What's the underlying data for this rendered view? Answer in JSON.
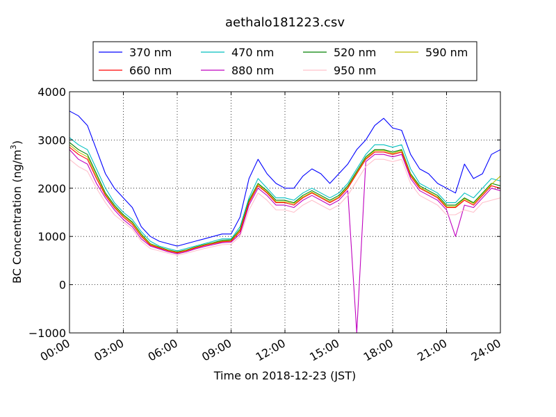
{
  "chart_data": {
    "type": "line",
    "title": "aethalo181223.csv",
    "xlabel": "Time on 2018-12-23 (JST)",
    "ylabel_main": "BC Concentration (ng/m",
    "ylabel_sup": "3",
    "ylabel_close": ")",
    "xlim": [
      0,
      24
    ],
    "ylim": [
      -1000,
      4000
    ],
    "x_unit": "hours",
    "xticks": [
      {
        "value": 0,
        "label": "00:00"
      },
      {
        "value": 3,
        "label": "03:00"
      },
      {
        "value": 6,
        "label": "06:00"
      },
      {
        "value": 9,
        "label": "09:00"
      },
      {
        "value": 12,
        "label": "12:00"
      },
      {
        "value": 15,
        "label": "15:00"
      },
      {
        "value": 18,
        "label": "18:00"
      },
      {
        "value": 21,
        "label": "21:00"
      },
      {
        "value": 24,
        "label": "24:00"
      }
    ],
    "yticks": [
      {
        "value": -1000,
        "label": "−1000"
      },
      {
        "value": 0,
        "label": "0"
      },
      {
        "value": 1000,
        "label": "1000"
      },
      {
        "value": 2000,
        "label": "2000"
      },
      {
        "value": 3000,
        "label": "3000"
      },
      {
        "value": 4000,
        "label": "4000"
      }
    ],
    "grid": true,
    "legend_position": "top-center",
    "legend_columns": 4,
    "x": [
      0,
      0.5,
      1,
      1.5,
      2,
      2.5,
      3,
      3.5,
      4,
      4.5,
      5,
      5.5,
      6,
      6.5,
      7,
      7.5,
      8,
      8.5,
      9,
      9.5,
      10,
      10.5,
      11,
      11.5,
      12,
      12.5,
      13,
      13.5,
      14,
      14.5,
      15,
      15.5,
      16,
      16.5,
      17,
      17.5,
      18,
      18.5,
      19,
      19.5,
      20,
      20.5,
      21,
      21.5,
      22,
      22.5,
      23,
      23.5,
      24
    ],
    "series": [
      {
        "name": "370 nm",
        "color": "#0000ff",
        "values": [
          3600,
          3500,
          3300,
          2800,
          2300,
          2000,
          1800,
          1600,
          1200,
          1000,
          900,
          850,
          800,
          850,
          900,
          950,
          1000,
          1050,
          1050,
          1400,
          2200,
          2600,
          2300,
          2100,
          2000,
          2000,
          2250,
          2400,
          2300,
          2100,
          2300,
          2500,
          2800,
          3000,
          3300,
          3450,
          3250,
          3200,
          2700,
          2400,
          2300,
          2100,
          2000,
          1900,
          2500,
          2200,
          2300,
          2700,
          2800
        ]
      },
      {
        "name": "470 nm",
        "color": "#00bfbf",
        "values": [
          3050,
          2900,
          2800,
          2400,
          2000,
          1700,
          1500,
          1350,
          1100,
          900,
          800,
          750,
          700,
          750,
          800,
          850,
          900,
          950,
          950,
          1200,
          1800,
          2200,
          2000,
          1800,
          1800,
          1750,
          1900,
          2000,
          1900,
          1800,
          1900,
          2100,
          2400,
          2700,
          2900,
          2900,
          2850,
          2900,
          2400,
          2100,
          2000,
          1900,
          1700,
          1700,
          1900,
          1800,
          2000,
          2200,
          2150
        ]
      },
      {
        "name": "520 nm",
        "color": "#008000",
        "values": [
          2950,
          2800,
          2700,
          2300,
          1900,
          1650,
          1450,
          1300,
          1050,
          850,
          780,
          720,
          680,
          720,
          780,
          830,
          870,
          920,
          930,
          1150,
          1750,
          2100,
          1950,
          1750,
          1750,
          1700,
          1850,
          1950,
          1850,
          1750,
          1850,
          2050,
          2350,
          2650,
          2800,
          2800,
          2750,
          2800,
          2300,
          2050,
          1950,
          1850,
          1650,
          1650,
          1800,
          1700,
          1900,
          2100,
          2050
        ]
      },
      {
        "name": "590 nm",
        "color": "#bfbf00",
        "values": [
          2900,
          2750,
          2650,
          2250,
          1870,
          1620,
          1430,
          1280,
          1030,
          840,
          770,
          710,
          670,
          710,
          770,
          820,
          860,
          900,
          910,
          1130,
          1720,
          2080,
          1920,
          1720,
          1720,
          1680,
          1820,
          1920,
          1820,
          1720,
          1820,
          2020,
          2320,
          2620,
          2780,
          2780,
          2720,
          2780,
          2280,
          2020,
          1920,
          1820,
          1620,
          1620,
          1780,
          1680,
          1880,
          2080,
          2250
        ]
      },
      {
        "name": "660 nm",
        "color": "#ff0000",
        "values": [
          2850,
          2700,
          2600,
          2200,
          1850,
          1600,
          1400,
          1250,
          1000,
          820,
          760,
          700,
          660,
          700,
          760,
          810,
          850,
          890,
          900,
          1100,
          1700,
          2050,
          1900,
          1700,
          1700,
          1650,
          1800,
          1900,
          1800,
          1700,
          1800,
          2000,
          2300,
          2600,
          2750,
          2750,
          2700,
          2750,
          2250,
          2000,
          1900,
          1800,
          1600,
          1600,
          1750,
          1650,
          1850,
          2050,
          2000
        ]
      },
      {
        "name": "880 nm",
        "color": "#bf00bf",
        "values": [
          2800,
          2600,
          2500,
          2100,
          1800,
          1550,
          1350,
          1200,
          950,
          800,
          740,
          680,
          640,
          680,
          740,
          790,
          830,
          870,
          880,
          1050,
          1650,
          2000,
          1850,
          1650,
          1650,
          1600,
          1750,
          1850,
          1750,
          1650,
          1750,
          1950,
          -1000,
          2550,
          2700,
          2700,
          2650,
          2700,
          2200,
          1950,
          1850,
          1750,
          1550,
          1000,
          1650,
          1600,
          1800,
          2000,
          1950
        ]
      },
      {
        "name": "950 nm",
        "color": "#ffc0cb",
        "values": [
          2600,
          2450,
          2350,
          2000,
          1700,
          1450,
          1300,
          1150,
          900,
          750,
          700,
          650,
          610,
          650,
          700,
          750,
          790,
          830,
          840,
          1000,
          1550,
          1900,
          1750,
          1550,
          1550,
          1500,
          1650,
          1750,
          1650,
          1550,
          1650,
          1850,
          2150,
          2450,
          2600,
          2600,
          2550,
          2600,
          2100,
          1850,
          1750,
          1650,
          1450,
          1450,
          1550,
          1500,
          1700,
          1750,
          1800
        ]
      }
    ]
  }
}
